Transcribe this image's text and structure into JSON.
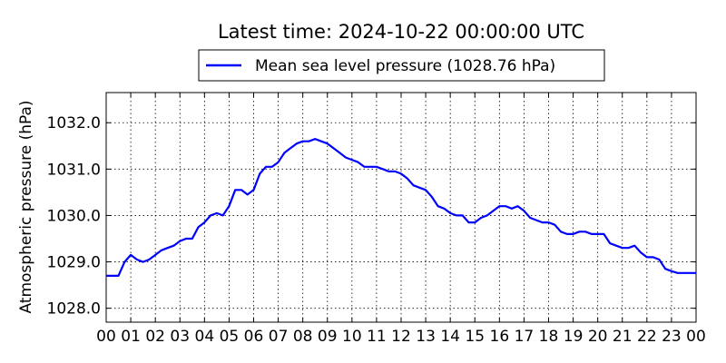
{
  "chart_data": {
    "type": "line",
    "title": "Latest time: 2024-10-22 00:00:00 UTC",
    "xlabel": "",
    "ylabel": "Atmospheric pressure (hPa)",
    "x_ticks": [
      "00",
      "01",
      "02",
      "03",
      "04",
      "05",
      "06",
      "07",
      "08",
      "09",
      "10",
      "11",
      "12",
      "13",
      "14",
      "15",
      "16",
      "17",
      "18",
      "19",
      "20",
      "21",
      "22",
      "23",
      "00"
    ],
    "xlim": [
      0,
      24
    ],
    "y_ticks": [
      "1028.0",
      "1029.0",
      "1030.0",
      "1031.0",
      "1032.0"
    ],
    "ylim": [
      1027.7,
      1032.65
    ],
    "grid": true,
    "legend": "top-center",
    "series": [
      {
        "name": "Mean sea level pressure (1028.76 hPa)",
        "color": "#0000ff",
        "x": [
          0,
          0.25,
          0.5,
          0.75,
          1.0,
          1.25,
          1.5,
          1.75,
          2.0,
          2.25,
          2.5,
          2.75,
          3.0,
          3.25,
          3.5,
          3.75,
          4.0,
          4.25,
          4.5,
          4.75,
          5.0,
          5.25,
          5.5,
          5.75,
          6.0,
          6.25,
          6.5,
          6.75,
          7.0,
          7.25,
          7.5,
          7.75,
          8.0,
          8.25,
          8.5,
          8.75,
          9.0,
          9.25,
          9.5,
          9.75,
          10.0,
          10.25,
          10.5,
          10.75,
          11.0,
          11.25,
          11.5,
          11.75,
          12.0,
          12.25,
          12.5,
          12.75,
          13.0,
          13.25,
          13.5,
          13.75,
          14.0,
          14.25,
          14.5,
          14.75,
          15.0,
          15.25,
          15.5,
          15.75,
          16.0,
          16.25,
          16.5,
          16.75,
          17.0,
          17.25,
          17.5,
          17.75,
          18.0,
          18.25,
          18.5,
          18.75,
          19.0,
          19.25,
          19.5,
          19.75,
          20.0,
          20.25,
          20.5,
          20.75,
          21.0,
          21.25,
          21.5,
          21.75,
          22.0,
          22.25,
          22.5,
          22.75,
          23.0,
          23.25,
          23.5,
          23.75,
          24.0
        ],
        "values": [
          1028.7,
          1028.7,
          1028.7,
          1029.0,
          1029.15,
          1029.05,
          1029.0,
          1029.05,
          1029.15,
          1029.25,
          1029.3,
          1029.35,
          1029.45,
          1029.5,
          1029.5,
          1029.75,
          1029.85,
          1030.0,
          1030.05,
          1030.0,
          1030.2,
          1030.55,
          1030.55,
          1030.45,
          1030.55,
          1030.9,
          1031.05,
          1031.05,
          1031.15,
          1031.35,
          1031.45,
          1031.55,
          1031.6,
          1031.6,
          1031.65,
          1031.6,
          1031.55,
          1031.45,
          1031.35,
          1031.25,
          1031.2,
          1031.15,
          1031.05,
          1031.05,
          1031.05,
          1031.0,
          1030.95,
          1030.95,
          1030.9,
          1030.8,
          1030.65,
          1030.6,
          1030.55,
          1030.4,
          1030.2,
          1030.15,
          1030.05,
          1030.0,
          1030.0,
          1029.85,
          1029.85,
          1029.95,
          1030.0,
          1030.1,
          1030.2,
          1030.2,
          1030.15,
          1030.2,
          1030.1,
          1029.95,
          1029.9,
          1029.85,
          1029.85,
          1029.8,
          1029.65,
          1029.6,
          1029.6,
          1029.65,
          1029.65,
          1029.6,
          1029.6,
          1029.6,
          1029.4,
          1029.35,
          1029.3,
          1029.3,
          1029.35,
          1029.2,
          1029.1,
          1029.1,
          1029.05,
          1028.85,
          1028.8,
          1028.76,
          1028.76,
          1028.76,
          1028.76
        ]
      }
    ]
  }
}
